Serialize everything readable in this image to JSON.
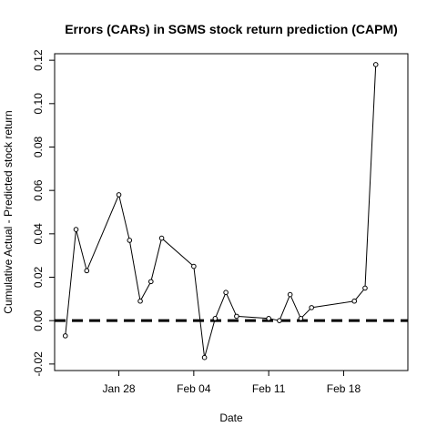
{
  "chart_data": {
    "type": "line",
    "title": "Errors (CARs) in SGMS stock return prediction (CAPM)",
    "xlabel": "Date",
    "ylabel": "Cumulative Actual - Predicted stock return",
    "x_ticks": [
      {
        "date": "2019-01-28",
        "label": "Jan 28"
      },
      {
        "date": "2019-02-04",
        "label": "Feb 04"
      },
      {
        "date": "2019-02-11",
        "label": "Feb 11"
      },
      {
        "date": "2019-02-18",
        "label": "Feb 18"
      }
    ],
    "y_ticks": [
      -0.02,
      0.0,
      0.02,
      0.04,
      0.06,
      0.08,
      0.1,
      0.12
    ],
    "y_tick_labels": [
      "-0.02",
      "0.00",
      "0.02",
      "0.04",
      "0.06",
      "0.08",
      "0.10",
      "0.12"
    ],
    "xlim": [
      "2019-01-22",
      "2019-02-24"
    ],
    "ylim": [
      -0.023,
      0.123
    ],
    "reference_line": {
      "y": 0.0,
      "style": "dashed"
    },
    "series": [
      {
        "points": [
          {
            "x": "2019-01-23",
            "y": -0.007
          },
          {
            "x": "2019-01-24",
            "y": 0.042
          },
          {
            "x": "2019-01-25",
            "y": 0.023
          },
          {
            "x": "2019-01-28",
            "y": 0.058
          },
          {
            "x": "2019-01-29",
            "y": 0.037
          },
          {
            "x": "2019-01-30",
            "y": 0.009
          },
          {
            "x": "2019-01-31",
            "y": 0.018
          },
          {
            "x": "2019-02-01",
            "y": 0.038
          },
          {
            "x": "2019-02-04",
            "y": 0.025
          },
          {
            "x": "2019-02-05",
            "y": -0.017
          },
          {
            "x": "2019-02-06",
            "y": 0.001
          },
          {
            "x": "2019-02-07",
            "y": 0.013
          },
          {
            "x": "2019-02-08",
            "y": 0.002
          },
          {
            "x": "2019-02-11",
            "y": 0.001
          },
          {
            "x": "2019-02-12",
            "y": 0.0
          },
          {
            "x": "2019-02-13",
            "y": 0.012
          },
          {
            "x": "2019-02-14",
            "y": 0.001
          },
          {
            "x": "2019-02-15",
            "y": 0.006
          },
          {
            "x": "2019-02-19",
            "y": 0.009
          },
          {
            "x": "2019-02-20",
            "y": 0.015
          },
          {
            "x": "2019-02-21",
            "y": 0.118
          }
        ]
      }
    ]
  }
}
